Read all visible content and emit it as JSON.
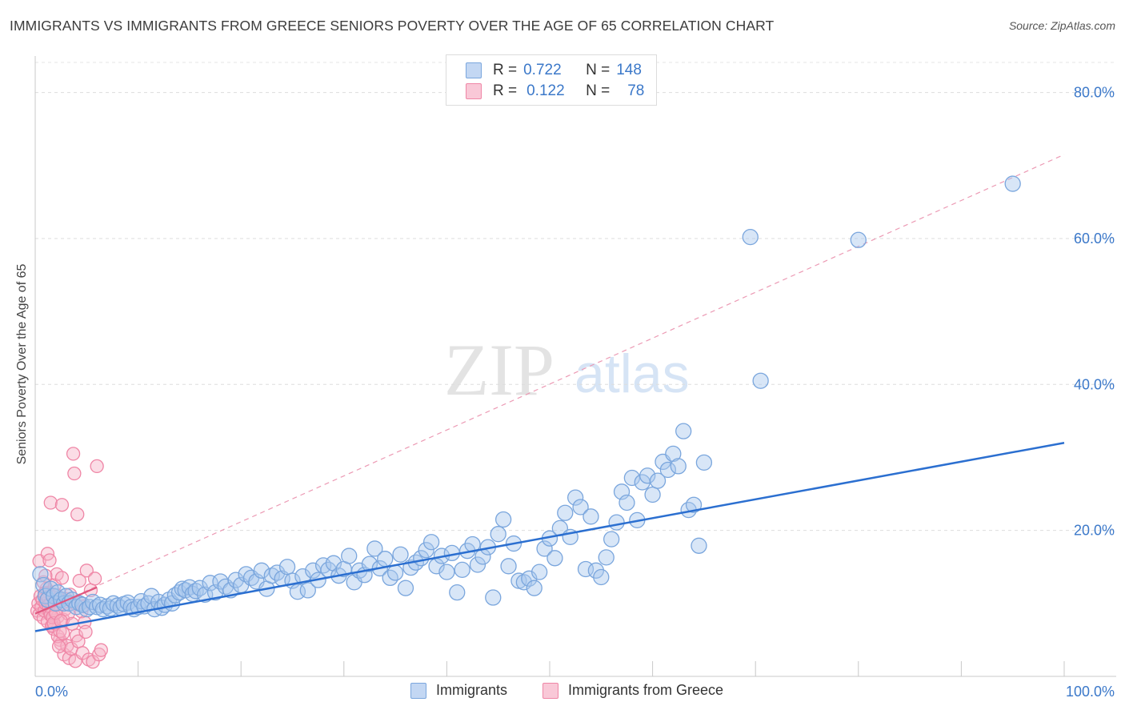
{
  "header": {
    "title": "IMMIGRANTS VS IMMIGRANTS FROM GREECE SENIORS POVERTY OVER THE AGE OF 65 CORRELATION CHART",
    "source": "Source: ZipAtlas.com"
  },
  "watermark": {
    "zip": "ZIP",
    "atlas": "atlas"
  },
  "legend_top": {
    "rows": [
      {
        "r_label": "R = ",
        "r_value": "0.722",
        "n_label": "N = ",
        "n_value": "148",
        "color": "#a9c7ee"
      },
      {
        "r_label": "R = ",
        "r_value": "0.122",
        "n_label": "N = ",
        "n_value": "78",
        "color": "#f6b3c8"
      }
    ]
  },
  "legend_bottom": {
    "items": [
      {
        "label": "Immigrants",
        "color": "#a9c7ee"
      },
      {
        "label": "Immigrants from Greece",
        "color": "#f6b3c8"
      }
    ]
  },
  "colors": {
    "blue_fill": "#a9c7ee",
    "blue_stroke": "#7aa6dd",
    "blue_line": "#2b6fd0",
    "pink_fill": "#f6b3c8",
    "pink_stroke": "#ef86a6",
    "pink_line": "#e0557e",
    "tick_text": "#3b78c9"
  },
  "chart_data": {
    "type": "scatter",
    "title": "IMMIGRANTS VS IMMIGRANTS FROM GREECE SENIORS POVERTY OVER THE AGE OF 65 CORRELATION CHART",
    "xlabel": "",
    "ylabel": "Seniors Poverty Over the Age of 65",
    "xlim": [
      0,
      100
    ],
    "ylim": [
      0,
      85
    ],
    "x_tick_labels": [
      "0.0%",
      "100.0%"
    ],
    "y_ticks": [
      20,
      40,
      60,
      80
    ],
    "y_tick_labels": [
      "20.0%",
      "40.0%",
      "60.0%",
      "80.0%"
    ],
    "grid": "horizontal dashed",
    "legend_position": "top-center",
    "series": [
      {
        "name": "Immigrants",
        "r": 0.722,
        "n": 148,
        "trend": {
          "x": [
            0,
            100
          ],
          "y": [
            6.2,
            32.0
          ],
          "style": "solid"
        },
        "points": [
          [
            0.5,
            14
          ],
          [
            0.8,
            12.5
          ],
          [
            1,
            11
          ],
          [
            1.2,
            10.5
          ],
          [
            1.5,
            12
          ],
          [
            1.8,
            11
          ],
          [
            2,
            10
          ],
          [
            2.2,
            11.5
          ],
          [
            2.5,
            10.5
          ],
          [
            2.8,
            10
          ],
          [
            3,
            11
          ],
          [
            3.3,
            10
          ],
          [
            3.6,
            10.5
          ],
          [
            4,
            9.5
          ],
          [
            4.3,
            10
          ],
          [
            4.6,
            9.8
          ],
          [
            5,
            9.2
          ],
          [
            5.3,
            9.5
          ],
          [
            5.6,
            10.2
          ],
          [
            6,
            9.5
          ],
          [
            6.3,
            9.8
          ],
          [
            6.6,
            9.2
          ],
          [
            7,
            9.6
          ],
          [
            7.3,
            9.3
          ],
          [
            7.6,
            10
          ],
          [
            8,
            9.7
          ],
          [
            8.3,
            9.4
          ],
          [
            8.6,
            9.9
          ],
          [
            9,
            10.1
          ],
          [
            9.3,
            9.5
          ],
          [
            9.6,
            9.2
          ],
          [
            10,
            9.5
          ],
          [
            10.3,
            10.3
          ],
          [
            10.6,
            9.6
          ],
          [
            11,
            10
          ],
          [
            11.3,
            11
          ],
          [
            11.6,
            9.2
          ],
          [
            12,
            10.2
          ],
          [
            12.3,
            9.4
          ],
          [
            12.6,
            9.8
          ],
          [
            13,
            10.5
          ],
          [
            13.3,
            10
          ],
          [
            13.6,
            11.1
          ],
          [
            14,
            11.5
          ],
          [
            14.3,
            12
          ],
          [
            14.6,
            11.8
          ],
          [
            15,
            12.2
          ],
          [
            15.3,
            11.3
          ],
          [
            15.6,
            11.7
          ],
          [
            16,
            12.1
          ],
          [
            16.5,
            11.2
          ],
          [
            17,
            12.8
          ],
          [
            17.5,
            11.5
          ],
          [
            18,
            13
          ],
          [
            18.5,
            12.3
          ],
          [
            19,
            11.8
          ],
          [
            19.5,
            13.2
          ],
          [
            20,
            12.5
          ],
          [
            20.5,
            14
          ],
          [
            21,
            13.5
          ],
          [
            21.5,
            13
          ],
          [
            22,
            14.5
          ],
          [
            22.5,
            12
          ],
          [
            23,
            13.8
          ],
          [
            23.5,
            14.2
          ],
          [
            24,
            13.4
          ],
          [
            24.5,
            15
          ],
          [
            25,
            13.1
          ],
          [
            25.5,
            11.6
          ],
          [
            26,
            13.7
          ],
          [
            26.5,
            11.8
          ],
          [
            27,
            14.5
          ],
          [
            27.5,
            13.2
          ],
          [
            28,
            15.2
          ],
          [
            28.5,
            14.6
          ],
          [
            29,
            15.5
          ],
          [
            29.5,
            13.8
          ],
          [
            30,
            14.7
          ],
          [
            30.5,
            16.5
          ],
          [
            31,
            12.9
          ],
          [
            31.5,
            14.5
          ],
          [
            32,
            13.9
          ],
          [
            32.5,
            15.4
          ],
          [
            33,
            17.5
          ],
          [
            33.5,
            14.8
          ],
          [
            34,
            16.1
          ],
          [
            34.5,
            13.5
          ],
          [
            35,
            14.2
          ],
          [
            35.5,
            16.7
          ],
          [
            36,
            12.1
          ],
          [
            36.5,
            14.9
          ],
          [
            37,
            15.6
          ],
          [
            37.5,
            16.2
          ],
          [
            38,
            17.3
          ],
          [
            38.5,
            18.4
          ],
          [
            39,
            15.1
          ],
          [
            39.5,
            16.5
          ],
          [
            40,
            14.3
          ],
          [
            40.5,
            16.9
          ],
          [
            41,
            11.5
          ],
          [
            41.5,
            14.6
          ],
          [
            42,
            17.2
          ],
          [
            42.5,
            18.1
          ],
          [
            43,
            15.3
          ],
          [
            43.5,
            16.4
          ],
          [
            44,
            17.7
          ],
          [
            44.5,
            10.8
          ],
          [
            45,
            19.5
          ],
          [
            45.5,
            21.5
          ],
          [
            46,
            15.1
          ],
          [
            46.5,
            18.2
          ],
          [
            47,
            13.1
          ],
          [
            47.5,
            12.9
          ],
          [
            48,
            13.4
          ],
          [
            48.5,
            12.1
          ],
          [
            49,
            14.3
          ],
          [
            49.5,
            17.5
          ],
          [
            50,
            18.9
          ],
          [
            50.5,
            16.2
          ],
          [
            51,
            20.3
          ],
          [
            51.5,
            22.4
          ],
          [
            52,
            19.1
          ],
          [
            52.5,
            24.5
          ],
          [
            53,
            23.2
          ],
          [
            53.5,
            14.7
          ],
          [
            54,
            21.9
          ],
          [
            54.5,
            14.5
          ],
          [
            55,
            13.6
          ],
          [
            55.5,
            16.3
          ],
          [
            56,
            18.8
          ],
          [
            56.5,
            21.1
          ],
          [
            57,
            25.3
          ],
          [
            57.5,
            23.8
          ],
          [
            58,
            27.2
          ],
          [
            58.5,
            21.4
          ],
          [
            59,
            26.6
          ],
          [
            59.5,
            27.5
          ],
          [
            60,
            24.9
          ],
          [
            60.5,
            26.8
          ],
          [
            61,
            29.4
          ],
          [
            61.5,
            28.3
          ],
          [
            62,
            30.5
          ],
          [
            62.5,
            28.8
          ],
          [
            63,
            33.6
          ],
          [
            63.5,
            22.8
          ],
          [
            64,
            23.5
          ],
          [
            64.5,
            17.9
          ],
          [
            65,
            29.3
          ],
          [
            70.5,
            40.5
          ],
          [
            69.5,
            60.2
          ],
          [
            80,
            59.8
          ],
          [
            95,
            67.5
          ]
        ]
      },
      {
        "name": "Immigrants from Greece",
        "r": 0.122,
        "n": 78,
        "trend": {
          "x": [
            0,
            6
          ],
          "y": [
            8.6,
            12.2
          ],
          "style": "solid"
        },
        "points": [
          [
            0.2,
            9
          ],
          [
            0.3,
            10
          ],
          [
            0.4,
            8.5
          ],
          [
            0.5,
            11
          ],
          [
            0.6,
            9.5
          ],
          [
            0.7,
            10.5
          ],
          [
            0.8,
            8
          ],
          [
            0.9,
            9
          ],
          [
            1,
            10
          ],
          [
            1.1,
            12
          ],
          [
            1.2,
            7.5
          ],
          [
            1.3,
            11.5
          ],
          [
            1.4,
            8.8
          ],
          [
            1.5,
            10.2
          ],
          [
            1.6,
            9.3
          ],
          [
            1.7,
            7
          ],
          [
            1.8,
            6.5
          ],
          [
            1.9,
            12.5
          ],
          [
            2,
            9.8
          ],
          [
            2.1,
            14
          ],
          [
            2.2,
            8.2
          ],
          [
            2.3,
            10.8
          ],
          [
            2.4,
            5
          ],
          [
            2.5,
            4.5
          ],
          [
            2.6,
            13.5
          ],
          [
            2.7,
            7.8
          ],
          [
            2.8,
            3
          ],
          [
            2.9,
            9.2
          ],
          [
            3,
            10.6
          ],
          [
            3.1,
            4.2
          ],
          [
            3.2,
            8.6
          ],
          [
            3.3,
            2.5
          ],
          [
            3.4,
            11.2
          ],
          [
            3.5,
            3.8
          ],
          [
            3.6,
            7.2
          ],
          [
            3.7,
            30.5
          ],
          [
            3.8,
            27.8
          ],
          [
            3.9,
            2.1
          ],
          [
            4,
            5.6
          ],
          [
            4.1,
            22.2
          ],
          [
            4.2,
            4.8
          ],
          [
            4.3,
            13.1
          ],
          [
            4.4,
            10.1
          ],
          [
            4.5,
            8.9
          ],
          [
            4.6,
            3.2
          ],
          [
            4.7,
            9.6
          ],
          [
            4.8,
            7.4
          ],
          [
            4.9,
            6.1
          ],
          [
            5,
            14.5
          ],
          [
            5.2,
            2.3
          ],
          [
            5.4,
            11.8
          ],
          [
            5.6,
            2.0
          ],
          [
            5.8,
            13.4
          ],
          [
            6,
            28.8
          ],
          [
            6.2,
            3.0
          ],
          [
            6.4,
            3.6
          ],
          [
            0.4,
            15.8
          ],
          [
            1.2,
            16.8
          ],
          [
            1.4,
            15.9
          ],
          [
            1.5,
            23.8
          ],
          [
            2.6,
            23.5
          ],
          [
            0.8,
            12.9
          ],
          [
            0.9,
            11.4
          ],
          [
            1.0,
            13.8
          ],
          [
            1.2,
            10.9
          ],
          [
            1.3,
            9.7
          ],
          [
            1.5,
            8.4
          ],
          [
            1.6,
            6.9
          ],
          [
            1.7,
            8.1
          ],
          [
            1.8,
            7.3
          ],
          [
            1.9,
            9.9
          ],
          [
            2.0,
            8.7
          ],
          [
            2.1,
            11.1
          ],
          [
            2.2,
            5.5
          ],
          [
            2.3,
            4.1
          ],
          [
            2.4,
            6.2
          ],
          [
            2.5,
            7.6
          ],
          [
            2.7,
            5.9
          ]
        ]
      }
    ],
    "reference_line": {
      "x": [
        0,
        100
      ],
      "y": [
        8.6,
        71.5
      ],
      "style": "dashed"
    }
  }
}
